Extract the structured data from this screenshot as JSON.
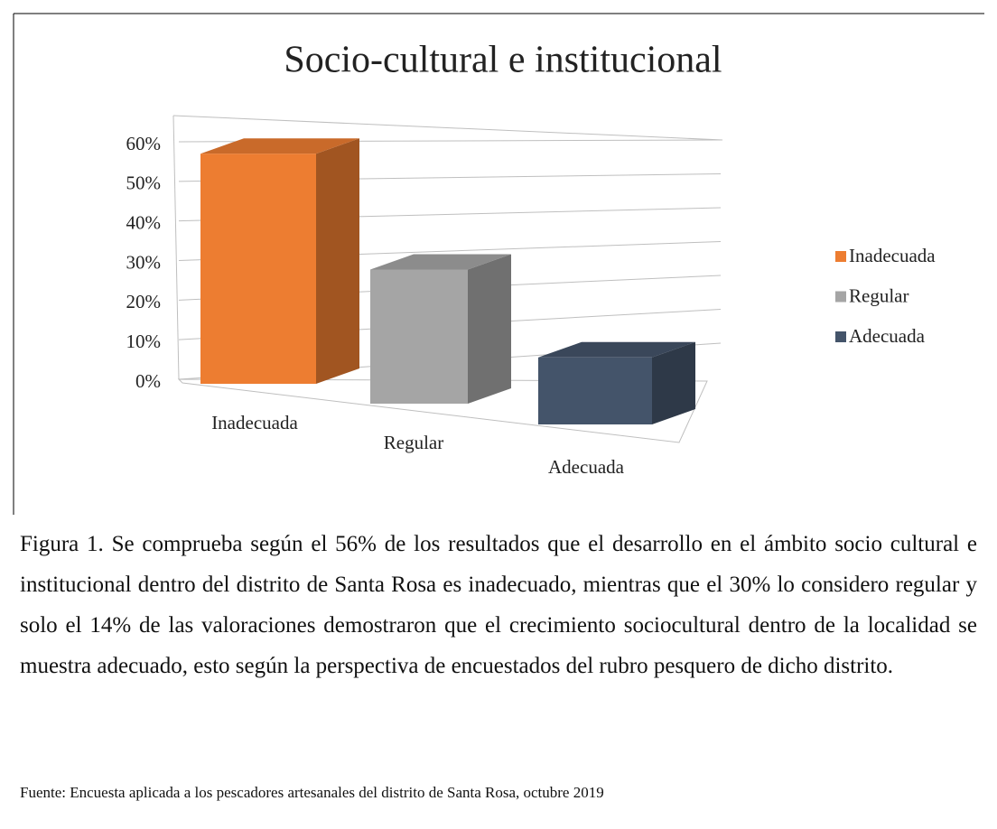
{
  "chart_data": {
    "type": "bar3d",
    "title": "Socio-cultural e institucional",
    "categories": [
      "Inadecuada",
      "Regular",
      "Adecuada"
    ],
    "values": [
      56,
      30,
      14
    ],
    "colors": [
      "#ed7d31",
      "#a5a5a5",
      "#44546a"
    ],
    "ylim": [
      0,
      60
    ],
    "yticks": [
      {
        "value": 0,
        "label": "0%"
      },
      {
        "value": 10,
        "label": "10%"
      },
      {
        "value": 20,
        "label": "20%"
      },
      {
        "value": 30,
        "label": "30%"
      },
      {
        "value": 40,
        "label": "40%"
      },
      {
        "value": 50,
        "label": "50%"
      },
      {
        "value": 60,
        "label": "60%"
      }
    ],
    "grid": true,
    "legend": "right"
  },
  "caption": "Figura 1. Se comprueba según el 56% de los resultados que el desarrollo en el ámbito socio cultural e institucional dentro del distrito de Santa Rosa es inadecuado, mientras que el 30% lo considero regular y solo el 14% de las valoraciones demostraron que el crecimiento sociocultural dentro de la localidad se muestra adecuado, esto según la perspectiva de encuestados del rubro pesquero de dicho distrito.",
  "source": "Fuente: Encuesta aplicada a los pescadores artesanales del distrito de Santa Rosa, octubre 2019"
}
